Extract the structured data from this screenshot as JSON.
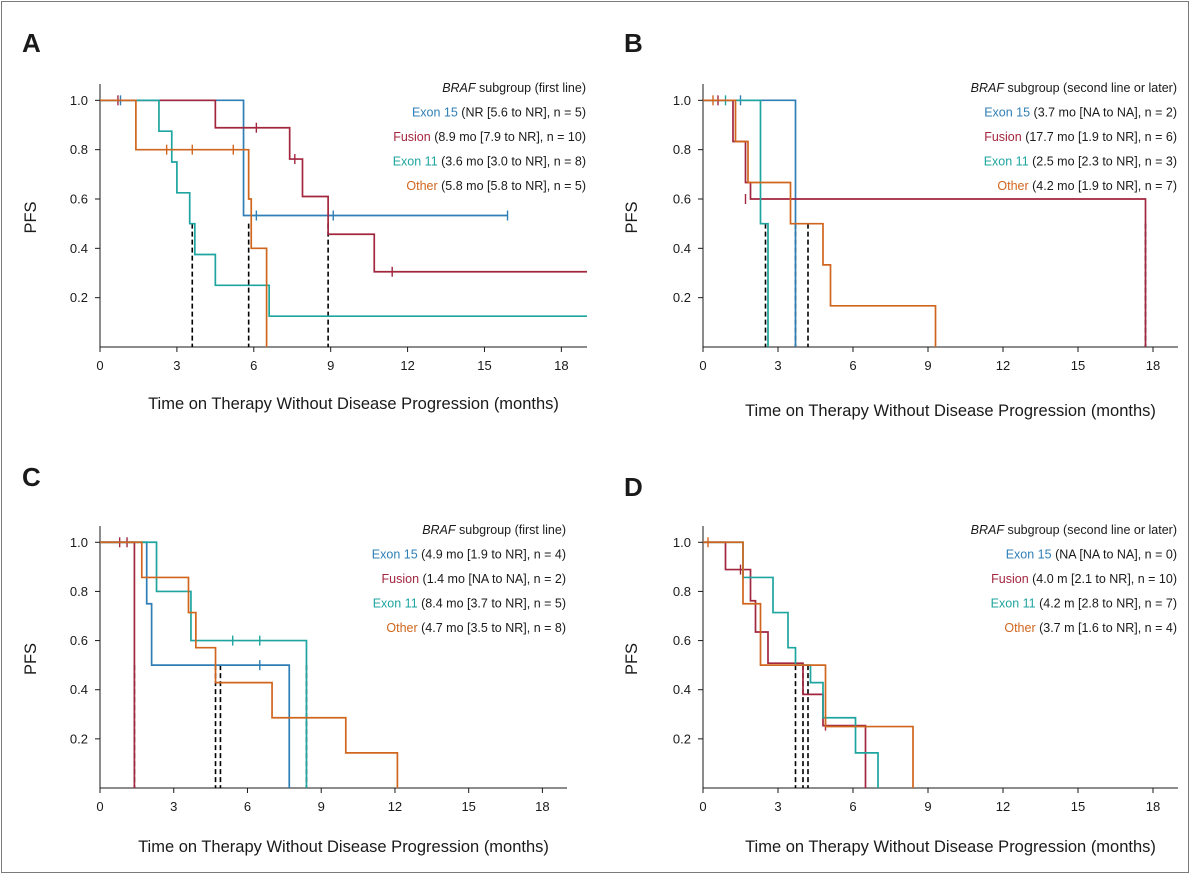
{
  "colors": {
    "exon15": "#2f7fb6",
    "fusion": "#a3263f",
    "exon11": "#1ea5a0",
    "other": "#d0661e",
    "median": "#000000",
    "axis": "#1a1a1a"
  },
  "chart_data": [
    {
      "panel": "A",
      "type": "line",
      "subtype": "kaplan-meier",
      "xlabel": "Time on Therapy Without Disease Progression (months)",
      "ylabel": "PFS",
      "xlim": [
        0,
        19
      ],
      "ylim": [
        0,
        1.05
      ],
      "xticks": [
        0,
        3,
        6,
        9,
        12,
        15,
        18
      ],
      "yticks": [
        0.2,
        0.4,
        0.6,
        0.8,
        1.0
      ],
      "legend_title_italic": "BRAF",
      "legend_title_rest": " subgroup (first line)",
      "legend_position": "top-right",
      "series": [
        {
          "name": "Exon 15",
          "detail": " (NR [5.6 to NR], n = 5)",
          "color_key": "exon15",
          "steps": [
            [
              0,
              1.0
            ],
            [
              5.6,
              0.533
            ],
            [
              15.9,
              0.533
            ]
          ],
          "censors": [
            [
              0.8,
              1.0
            ],
            [
              6.1,
              0.533
            ],
            [
              9.1,
              0.533
            ],
            [
              15.9,
              0.533
            ]
          ],
          "median": null
        },
        {
          "name": "Fusion",
          "detail": " (8.9 mo [7.9 to NR], n = 10)",
          "color_key": "fusion",
          "steps": [
            [
              0,
              1.0
            ],
            [
              4.5,
              0.889
            ],
            [
              7.4,
              0.762
            ],
            [
              7.9,
              0.61
            ],
            [
              8.9,
              0.457
            ],
            [
              10.7,
              0.305
            ],
            [
              19,
              0.305
            ]
          ],
          "censors": [
            [
              0.7,
              1.0
            ],
            [
              6.1,
              0.889
            ],
            [
              7.6,
              0.762
            ],
            [
              11.4,
              0.305
            ]
          ],
          "median": 8.9
        },
        {
          "name": "Exon 11",
          "detail": " (3.6 mo [3.0 to NR], n = 8)",
          "color_key": "exon11",
          "steps": [
            [
              0,
              1.0
            ],
            [
              2.3,
              0.875
            ],
            [
              2.8,
              0.75
            ],
            [
              3.0,
              0.625
            ],
            [
              3.5,
              0.5
            ],
            [
              3.7,
              0.375
            ],
            [
              4.5,
              0.25
            ],
            [
              6.6,
              0.125
            ],
            [
              19,
              0.125
            ]
          ],
          "censors": [],
          "median": 3.6
        },
        {
          "name": "Other",
          "detail": " (5.8 mo [5.8 to NR], n = 5)",
          "color_key": "other",
          "steps": [
            [
              0,
              1.0
            ],
            [
              1.4,
              0.8
            ],
            [
              5.8,
              0.6
            ],
            [
              5.9,
              0.4
            ],
            [
              6.5,
              0.0
            ]
          ],
          "censors": [
            [
              2.6,
              0.8
            ],
            [
              3.6,
              0.8
            ],
            [
              5.2,
              0.8
            ]
          ],
          "median": 5.8
        }
      ]
    },
    {
      "panel": "B",
      "type": "line",
      "subtype": "kaplan-meier",
      "xlabel": "Time on Therapy Without Disease Progression (months)",
      "ylabel": "PFS",
      "xlim": [
        0,
        19
      ],
      "ylim": [
        0,
        1.05
      ],
      "xticks": [
        0,
        3,
        6,
        9,
        12,
        15,
        18
      ],
      "yticks": [
        0.2,
        0.4,
        0.6,
        0.8,
        1.0
      ],
      "legend_title_italic": "BRAF",
      "legend_title_rest": " subgroup (second line or later)",
      "legend_position": "top-right",
      "series": [
        {
          "name": "Exon 15",
          "detail": " (3.7 mo [NA to NA], n = 2)",
          "color_key": "exon15",
          "steps": [
            [
              0,
              1.0
            ],
            [
              3.7,
              0.0
            ]
          ],
          "censors": [
            [
              1.5,
              1.0
            ]
          ],
          "median": 3.7
        },
        {
          "name": "Fusion",
          "detail": " (17.7 mo [1.9 to NR], n = 6)",
          "color_key": "fusion",
          "steps": [
            [
              0,
              1.0
            ],
            [
              1.2,
              0.833
            ],
            [
              1.7,
              0.667
            ],
            [
              1.9,
              0.6
            ],
            [
              17.7,
              0.0
            ]
          ],
          "censors": [
            [
              0.6,
              1.0
            ],
            [
              1.7,
              0.6
            ]
          ],
          "median": 17.7
        },
        {
          "name": "Exon 11",
          "detail": " (2.5 mo [2.3 to NR], n = 3)",
          "color_key": "exon11",
          "steps": [
            [
              0,
              1.0
            ],
            [
              2.3,
              0.5
            ],
            [
              2.6,
              0.0
            ]
          ],
          "censors": [
            [
              0.9,
              1.0
            ]
          ],
          "median": 2.5
        },
        {
          "name": "Other",
          "detail": " (4.2 mo [1.9 to NR], n = 7)",
          "color_key": "other",
          "steps": [
            [
              0,
              1.0
            ],
            [
              1.3,
              0.833
            ],
            [
              1.8,
              0.667
            ],
            [
              3.5,
              0.5
            ],
            [
              4.8,
              0.333
            ],
            [
              5.1,
              0.167
            ],
            [
              9.3,
              0.0
            ]
          ],
          "censors": [
            [
              0.4,
              1.0
            ]
          ],
          "median": 4.2
        }
      ]
    },
    {
      "panel": "C",
      "type": "line",
      "subtype": "kaplan-meier",
      "xlabel": "Time on Therapy Without Disease Progression (months)",
      "ylabel": "PFS",
      "xlim": [
        0,
        19
      ],
      "ylim": [
        0,
        1.05
      ],
      "xticks": [
        0,
        3,
        6,
        9,
        12,
        15,
        18
      ],
      "yticks": [
        0.2,
        0.4,
        0.6,
        0.8,
        1.0
      ],
      "legend_title_italic": "BRAF",
      "legend_title_rest": " subgroup (first line)",
      "legend_position": "top-right",
      "series": [
        {
          "name": "Exon 15",
          "detail": " (4.9 mo [1.9 to NR], n = 4)",
          "color_key": "exon15",
          "steps": [
            [
              0,
              1.0
            ],
            [
              1.9,
              0.75
            ],
            [
              2.1,
              0.5
            ],
            [
              7.7,
              0.0
            ]
          ],
          "censors": [
            [
              6.5,
              0.5
            ]
          ],
          "median": 4.9
        },
        {
          "name": "Fusion",
          "detail": " (1.4 mo [NA to NA], n = 2)",
          "color_key": "fusion",
          "steps": [
            [
              0,
              1.0
            ],
            [
              1.4,
              0.0
            ]
          ],
          "censors": [
            [
              0.8,
              1.0
            ],
            [
              1.1,
              1.0
            ]
          ],
          "median": 1.4
        },
        {
          "name": "Exon 11",
          "detail": " (8.4 mo [3.7 to NR], n = 5)",
          "color_key": "exon11",
          "steps": [
            [
              0,
              1.0
            ],
            [
              2.3,
              0.8
            ],
            [
              3.7,
              0.6
            ],
            [
              8.4,
              0.0
            ]
          ],
          "censors": [
            [
              5.4,
              0.6
            ],
            [
              6.5,
              0.6
            ]
          ],
          "median": 8.4
        },
        {
          "name": "Other",
          "detail": " (4.7 mo [3.5 to NR], n = 8)",
          "color_key": "other",
          "steps": [
            [
              0,
              1.0
            ],
            [
              1.7,
              0.857
            ],
            [
              3.6,
              0.714
            ],
            [
              3.9,
              0.571
            ],
            [
              4.7,
              0.429
            ],
            [
              7.0,
              0.286
            ],
            [
              10.0,
              0.143
            ],
            [
              12.1,
              0.0
            ]
          ],
          "censors": [],
          "median": 4.7
        }
      ]
    },
    {
      "panel": "D",
      "type": "line",
      "subtype": "kaplan-meier",
      "xlabel": "Time on Therapy Without Disease Progression (months)",
      "ylabel": "PFS",
      "xlim": [
        0,
        19
      ],
      "ylim": [
        0,
        1.05
      ],
      "xticks": [
        0,
        3,
        6,
        9,
        12,
        15,
        18
      ],
      "yticks": [
        0.2,
        0.4,
        0.6,
        0.8,
        1.0
      ],
      "legend_title_italic": "BRAF",
      "legend_title_rest": " subgroup (second line or later)",
      "legend_position": "top-right",
      "series": [
        {
          "name": "Exon 15",
          "detail": " (NA [NA to NA], n = 0)",
          "color_key": "exon15",
          "steps": [],
          "censors": [],
          "median": null
        },
        {
          "name": "Fusion",
          "detail": " (4.0 m [2.1 to NR], n = 10)",
          "color_key": "fusion",
          "steps": [
            [
              0,
              1.0
            ],
            [
              0.9,
              0.889
            ],
            [
              1.9,
              0.762
            ],
            [
              2.1,
              0.635
            ],
            [
              2.6,
              0.508
            ],
            [
              4.0,
              0.381
            ],
            [
              4.8,
              0.254
            ],
            [
              6.5,
              0.0
            ]
          ],
          "censors": [
            [
              1.5,
              0.889
            ],
            [
              4.9,
              0.254
            ]
          ],
          "median": 4.0
        },
        {
          "name": "Exon 11",
          "detail": " (4.2 m [2.8 to NR], n = 7)",
          "color_key": "exon11",
          "steps": [
            [
              0,
              1.0
            ],
            [
              1.6,
              0.857
            ],
            [
              2.8,
              0.714
            ],
            [
              3.4,
              0.571
            ],
            [
              3.7,
              0.5
            ],
            [
              4.3,
              0.429
            ],
            [
              4.8,
              0.286
            ],
            [
              6.1,
              0.143
            ],
            [
              7.0,
              0.0
            ]
          ],
          "censors": [],
          "median": 4.2
        },
        {
          "name": "Other",
          "detail": " (3.7 m [1.6 to NR], n = 4)",
          "color_key": "other",
          "steps": [
            [
              0,
              1.0
            ],
            [
              1.6,
              0.75
            ],
            [
              2.3,
              0.5
            ],
            [
              4.9,
              0.25
            ],
            [
              8.4,
              0.0
            ]
          ],
          "censors": [
            [
              0.2,
              1.0
            ]
          ],
          "median": 3.7
        }
      ]
    }
  ]
}
